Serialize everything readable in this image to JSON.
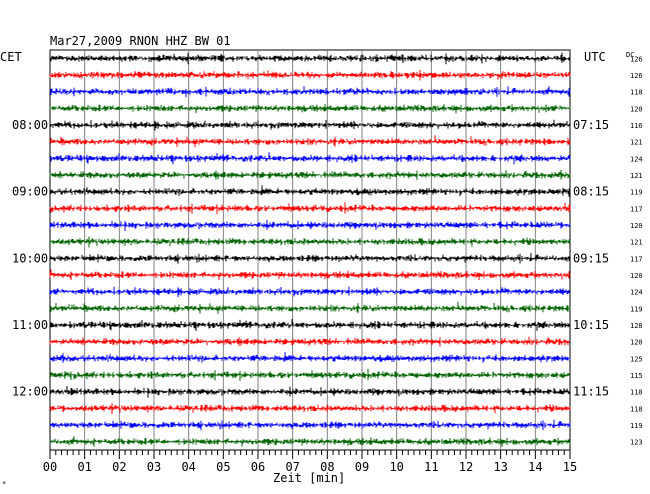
{
  "header": {
    "title": "Mar27,2009   RNON HHZ BW 01",
    "left_tz": "CET",
    "right_tz": "UTC",
    "dc_label": "DC"
  },
  "x_axis": {
    "label": "Zeit [min]",
    "ticks": [
      "00",
      "01",
      "02",
      "03",
      "04",
      "05",
      "06",
      "07",
      "08",
      "09",
      "10",
      "11",
      "12",
      "13",
      "14",
      "15"
    ]
  },
  "left_times": [
    "08:00",
    "09:00",
    "10:00",
    "11:00",
    "12:00"
  ],
  "right_times": [
    "07:15",
    "08:15",
    "09:15",
    "10:15",
    "11:15"
  ],
  "dc_values": [
    "126",
    "126",
    "118",
    "120",
    "116",
    "121",
    "124",
    "121",
    "119",
    "117",
    "120",
    "121",
    "117",
    "120",
    "124",
    "119",
    "128",
    "120",
    "125",
    "115",
    "118",
    "118",
    "119",
    "123"
  ],
  "trace_colors": [
    "#000000",
    "#ff0000",
    "#0000ff",
    "#006400"
  ],
  "corner_mark": "*"
}
